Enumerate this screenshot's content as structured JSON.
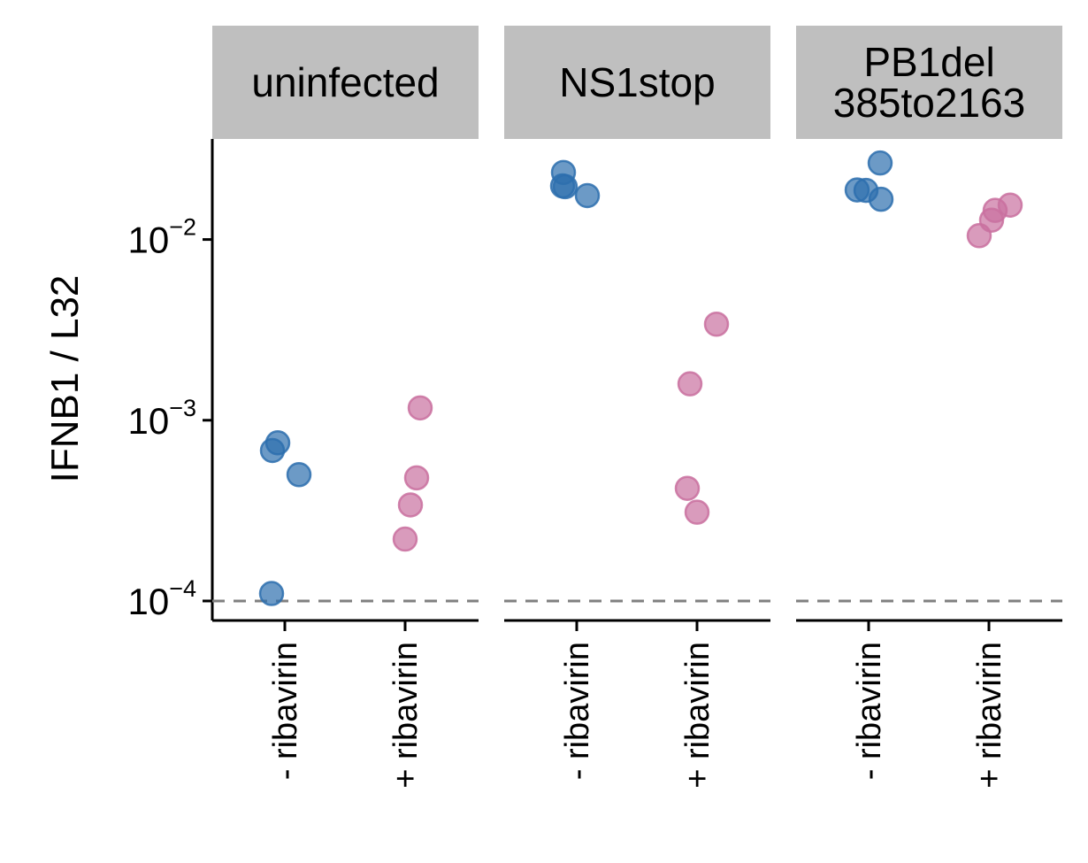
{
  "chart_data": {
    "type": "scatter",
    "ylabel": "IFNB1 / L32",
    "xlabel": "",
    "yscale": "log",
    "ylim": [
      7.8e-05,
      0.036
    ],
    "yticks": [
      {
        "value": 0.0001,
        "base": "10",
        "exp": "−4"
      },
      {
        "value": 0.001,
        "base": "10",
        "exp": "−3"
      },
      {
        "value": 0.01,
        "base": "10",
        "exp": "−2"
      }
    ],
    "categories": [
      "- ribavirin",
      "+ ribavirin"
    ],
    "facets": [
      "uninfected",
      "NS1stop",
      "PB1del\n385to2163"
    ],
    "detection_limit": 0.0001,
    "grid": false,
    "legend": "none",
    "colors": {
      "- ribavirin": "#2d6fae",
      "+ ribavirin": "#c9709f"
    },
    "points": [
      {
        "facet": 0,
        "category": 0,
        "y": 0.00068
      },
      {
        "facet": 0,
        "category": 0,
        "y": 0.00075
      },
      {
        "facet": 0,
        "category": 0,
        "y": 0.0005
      },
      {
        "facet": 0,
        "category": 0,
        "y": 0.00011
      },
      {
        "facet": 0,
        "category": 1,
        "y": 0.00117
      },
      {
        "facet": 0,
        "category": 1,
        "y": 0.00048
      },
      {
        "facet": 0,
        "category": 1,
        "y": 0.00034
      },
      {
        "facet": 0,
        "category": 1,
        "y": 0.00022
      },
      {
        "facet": 1,
        "category": 0,
        "y": 0.0235
      },
      {
        "facet": 1,
        "category": 0,
        "y": 0.0196
      },
      {
        "facet": 1,
        "category": 0,
        "y": 0.0198
      },
      {
        "facet": 1,
        "category": 0,
        "y": 0.0175
      },
      {
        "facet": 1,
        "category": 1,
        "y": 0.0034
      },
      {
        "facet": 1,
        "category": 1,
        "y": 0.00159
      },
      {
        "facet": 1,
        "category": 1,
        "y": 0.00042
      },
      {
        "facet": 1,
        "category": 1,
        "y": 0.00031
      },
      {
        "facet": 2,
        "category": 0,
        "y": 0.0265
      },
      {
        "facet": 2,
        "category": 0,
        "y": 0.0188
      },
      {
        "facet": 2,
        "category": 0,
        "y": 0.0187
      },
      {
        "facet": 2,
        "category": 0,
        "y": 0.0167
      },
      {
        "facet": 2,
        "category": 1,
        "y": 0.0155
      },
      {
        "facet": 2,
        "category": 1,
        "y": 0.0145
      },
      {
        "facet": 2,
        "category": 1,
        "y": 0.0128
      },
      {
        "facet": 2,
        "category": 1,
        "y": 0.0105
      }
    ]
  }
}
